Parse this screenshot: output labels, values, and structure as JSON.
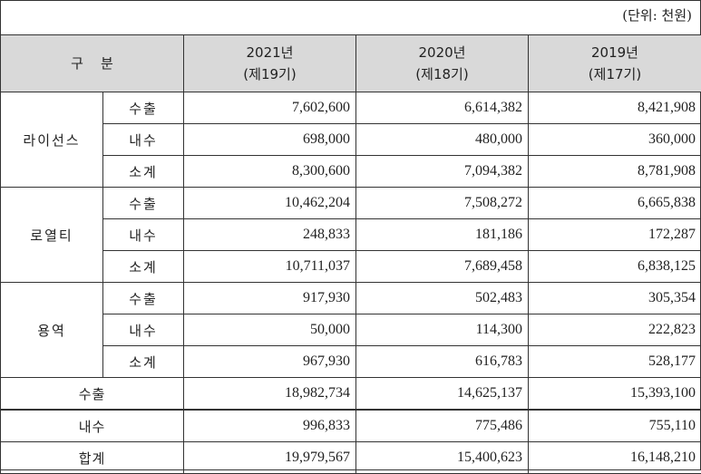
{
  "unit_label": "(단위: 천원)",
  "header": {
    "division": "구    분",
    "years": [
      {
        "year": "2021년",
        "term": "(제19기)"
      },
      {
        "year": "2020년",
        "term": "(제18기)"
      },
      {
        "year": "2019년",
        "term": "(제17기)"
      }
    ]
  },
  "groups": [
    {
      "name": "라이선스",
      "rows": [
        {
          "label": "수출",
          "values": [
            "7,602,600",
            "6,614,382",
            "8,421,908"
          ]
        },
        {
          "label": "내수",
          "values": [
            "698,000",
            "480,000",
            "360,000"
          ]
        },
        {
          "label": "소계",
          "values": [
            "8,300,600",
            "7,094,382",
            "8,781,908"
          ]
        }
      ]
    },
    {
      "name": "로열티",
      "rows": [
        {
          "label": "수출",
          "values": [
            "10,462,204",
            "7,508,272",
            "6,665,838"
          ]
        },
        {
          "label": "내수",
          "values": [
            "248,833",
            "181,186",
            "172,287"
          ]
        },
        {
          "label": "소계",
          "values": [
            "10,711,037",
            "7,689,458",
            "6,838,125"
          ]
        }
      ]
    },
    {
      "name": "용역",
      "rows": [
        {
          "label": "수출",
          "values": [
            "917,930",
            "502,483",
            "305,354"
          ]
        },
        {
          "label": "내수",
          "values": [
            "50,000",
            "114,300",
            "222,823"
          ]
        },
        {
          "label": "소계",
          "values": [
            "967,930",
            "616,783",
            "528,177"
          ]
        }
      ]
    }
  ],
  "totals": [
    {
      "label": "수출",
      "values": [
        "18,982,734",
        "14,625,137",
        "15,393,100"
      ]
    },
    {
      "label": "내수",
      "values": [
        "996,833",
        "775,486",
        "755,110"
      ]
    },
    {
      "label": "합계",
      "values": [
        "19,979,567",
        "15,400,623",
        "16,148,210"
      ]
    }
  ]
}
